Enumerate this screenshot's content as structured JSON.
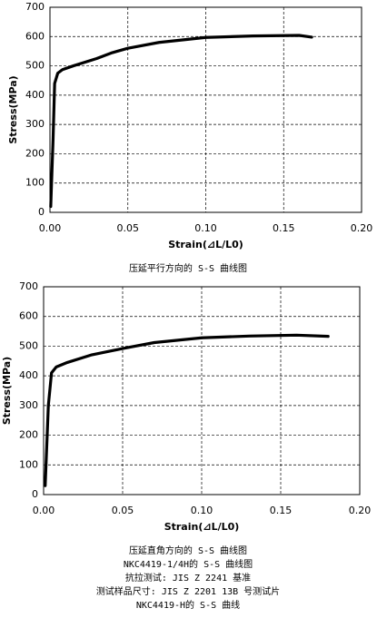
{
  "chart_data": [
    {
      "type": "line",
      "y_label": "Stress(MPa)",
      "x_label": "Strain(⊿L/L0)",
      "xlim": [
        0,
        0.2
      ],
      "xticks": [
        {
          "value": 0,
          "label": "0.00"
        },
        0.05,
        {
          "value": 0.1,
          "label": "0.10"
        },
        0.15,
        {
          "value": 0.2,
          "label": "0.20"
        }
      ],
      "ylim": [
        0,
        700
      ],
      "yticks": [
        0,
        100,
        200,
        300,
        400,
        500,
        600,
        700
      ],
      "grid": true,
      "series": [
        {
          "color": "#000000",
          "x": [
            0.0005,
            0.002,
            0.003,
            0.005,
            0.008,
            0.015,
            0.03,
            0.04,
            0.05,
            0.07,
            0.1,
            0.13,
            0.16,
            0.168
          ],
          "values": [
            20,
            250,
            440,
            475,
            487,
            500,
            525,
            545,
            560,
            580,
            597,
            602,
            604,
            598
          ]
        }
      ],
      "captions": [
        "压延平行方向的 S-S 曲线图"
      ]
    },
    {
      "type": "line",
      "y_label": "Stress(MPa)",
      "x_label": "Strain(⊿L/L0)",
      "xlim": [
        0,
        0.2
      ],
      "xticks": [
        {
          "value": 0,
          "label": "0.00"
        },
        0.05,
        {
          "value": 0.1,
          "label": "0.10"
        },
        0.15,
        {
          "value": 0.2,
          "label": "0.20"
        }
      ],
      "ylim": [
        0,
        700
      ],
      "yticks": [
        0,
        100,
        200,
        300,
        400,
        500,
        600,
        700
      ],
      "grid": true,
      "series": [
        {
          "color": "#000000",
          "x": [
            0.001,
            0.003,
            0.005,
            0.008,
            0.015,
            0.03,
            0.05,
            0.07,
            0.1,
            0.13,
            0.16,
            0.18
          ],
          "values": [
            30,
            300,
            410,
            430,
            445,
            470,
            492,
            512,
            528,
            534,
            537,
            533
          ]
        }
      ],
      "captions": [
        "压延直角方向的 S-S 曲线图",
        "NKC4419-1/4H的 S-S 曲线图",
        "抗拉测试: JIS Z 2241 基准",
        "测试样品尺寸: JIS Z 2201 13B 号测试片",
        "NKC4419-H的 S-S 曲线"
      ]
    }
  ]
}
